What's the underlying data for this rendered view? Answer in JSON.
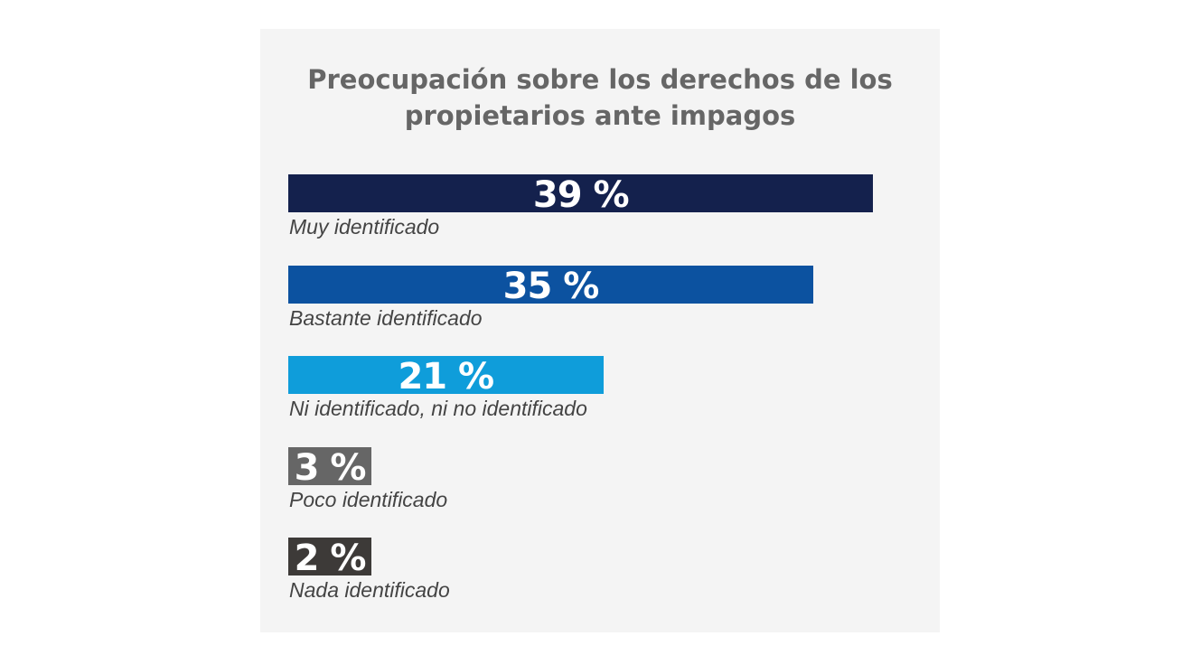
{
  "chart_data": {
    "type": "bar",
    "orientation": "horizontal",
    "title": "Preocupación sobre los derechos de los propietarios ante impagos",
    "title_lines": [
      "Preocupación sobre los derechos de los",
      "propietarios ante impagos"
    ],
    "categories": [
      "Muy identificado",
      "Bastante identificado",
      "Ni identificado, ni no identificado",
      "Poco identificado",
      "Nada identificado"
    ],
    "values": [
      39,
      35,
      21,
      3,
      2
    ],
    "value_labels": [
      "39 %",
      "35 %",
      "21 %",
      "3 %",
      "2 %"
    ],
    "colors": [
      "#14214d",
      "#0c52a0",
      "#0f9dda",
      "#666666",
      "#3d3a38"
    ],
    "unit": "%",
    "grid": false,
    "background": "#f4f4f4"
  }
}
